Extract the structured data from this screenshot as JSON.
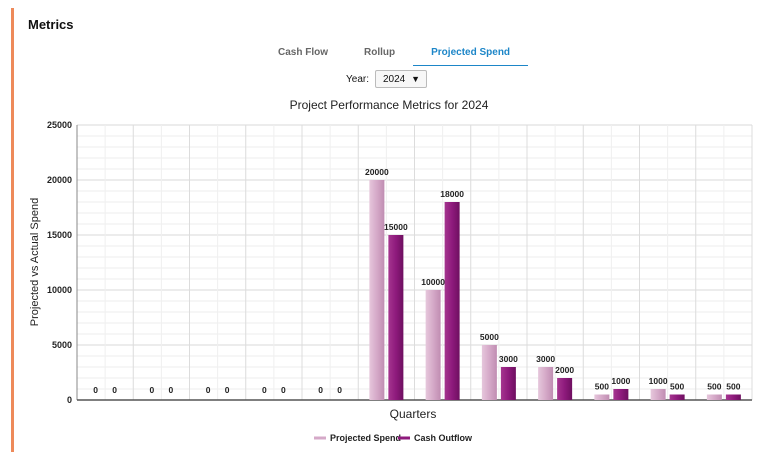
{
  "panel": {
    "title": "Metrics"
  },
  "tabs": [
    {
      "label": "Cash Flow",
      "active": false
    },
    {
      "label": "Rollup",
      "active": false
    },
    {
      "label": "Projected Spend",
      "active": true
    }
  ],
  "year_filter": {
    "label": "Year:",
    "value": "2024"
  },
  "colors": {
    "accent": "#ee8a5a",
    "tab_active": "#1d86c8",
    "projected": "#d5a9c8",
    "outflow": "#8e1a7c"
  },
  "chart_data": {
    "type": "bar",
    "title": "Project Performance Metrics for 2024",
    "xlabel": "Quarters",
    "ylabel": "Projected vs Actual Spend",
    "ylim": [
      0,
      25000
    ],
    "yticks": [
      0,
      5000,
      10000,
      15000,
      20000,
      25000
    ],
    "grid": true,
    "legend_position": "bottom",
    "categories": [
      "",
      "",
      "",
      "",
      "",
      "",
      "",
      "",
      "",
      "",
      "",
      ""
    ],
    "series": [
      {
        "name": "Projected Spend",
        "color": "#d5a9c8",
        "values": [
          0,
          0,
          0,
          0,
          0,
          20000,
          10000,
          5000,
          3000,
          500,
          1000,
          500
        ]
      },
      {
        "name": "Cash Outflow",
        "color": "#8e1a7c",
        "values": [
          0,
          0,
          0,
          0,
          0,
          15000,
          18000,
          3000,
          2000,
          1000,
          500,
          500
        ]
      }
    ]
  }
}
